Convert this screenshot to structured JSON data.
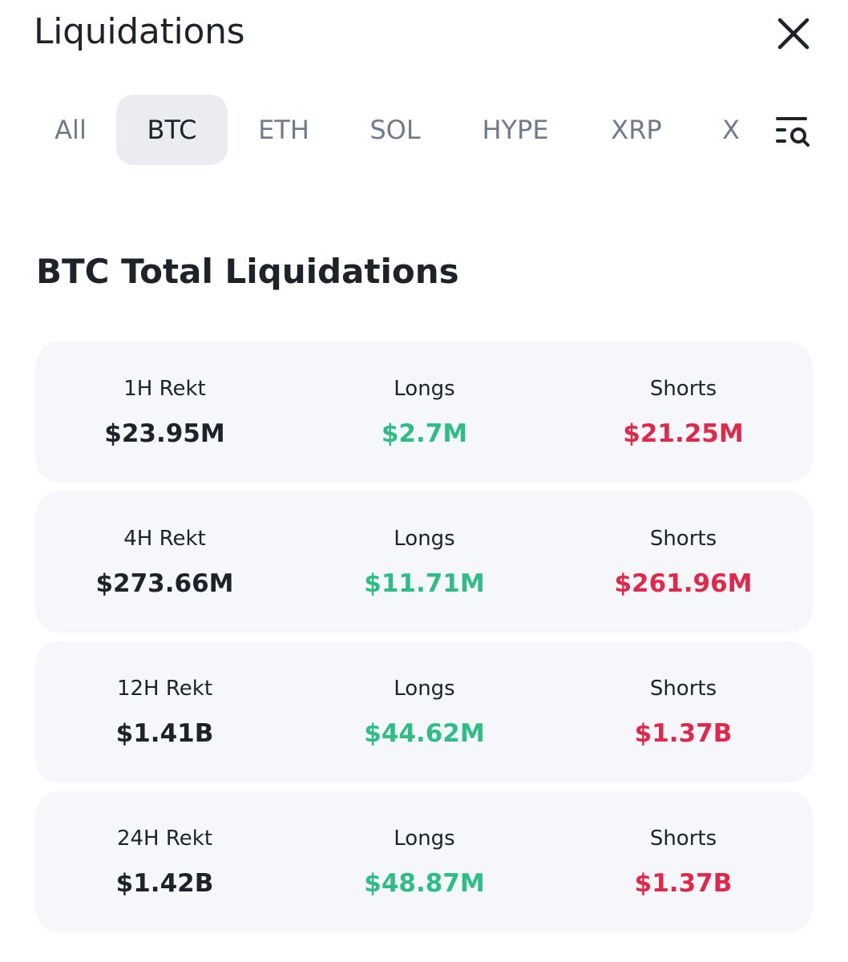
{
  "header": {
    "title": "Liquidations",
    "close_icon": "close-icon"
  },
  "tabs": [
    {
      "label": "All",
      "active": false
    },
    {
      "label": "BTC",
      "active": true
    },
    {
      "label": "ETH",
      "active": false
    },
    {
      "label": "SOL",
      "active": false
    },
    {
      "label": "HYPE",
      "active": false
    },
    {
      "label": "XRP",
      "active": false
    },
    {
      "label": "X",
      "active": false
    }
  ],
  "filter_icon": "filter-search-icon",
  "section_title": "BTC Total Liquidations",
  "colors": {
    "long": "#2ebd85",
    "short": "#e0294a",
    "active_tab_bg": "#eaecef",
    "card_bg": "#f5f7fa"
  },
  "rows": [
    {
      "period_label": "1H Rekt",
      "total": "$23.95M",
      "longs_label": "Longs",
      "longs": "$2.7M",
      "shorts_label": "Shorts",
      "shorts": "$21.25M"
    },
    {
      "period_label": "4H Rekt",
      "total": "$273.66M",
      "longs_label": "Longs",
      "longs": "$11.71M",
      "shorts_label": "Shorts",
      "shorts": "$261.96M"
    },
    {
      "period_label": "12H Rekt",
      "total": "$1.41B",
      "longs_label": "Longs",
      "longs": "$44.62M",
      "shorts_label": "Shorts",
      "shorts": "$1.37B"
    },
    {
      "period_label": "24H Rekt",
      "total": "$1.42B",
      "longs_label": "Longs",
      "longs": "$48.87M",
      "shorts_label": "Shorts",
      "shorts": "$1.37B"
    }
  ]
}
